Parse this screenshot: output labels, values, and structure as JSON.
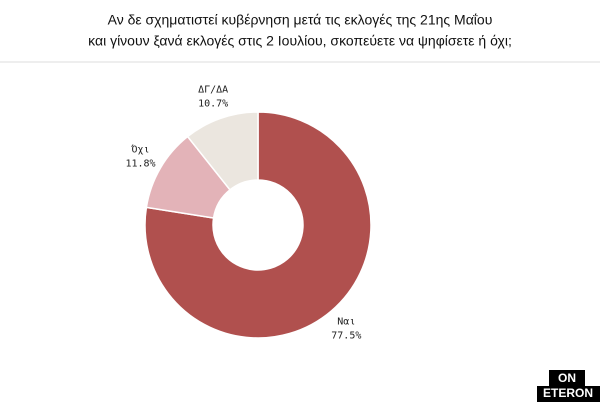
{
  "chart_data": {
    "type": "donut",
    "title": [
      "Αν δε σχηματιστεί κυβέρνηση μετά τις εκλογές της 21ης Μαΐου",
      "και γίνουν ξανά εκλογές στις 2 Ιουλίου, σκοπεύετε να ψηφίσετε ή όχι;"
    ],
    "categories": [
      "Ναι",
      "Όχι",
      "ΔΓ/ΔΑ"
    ],
    "values": [
      77.5,
      11.8,
      10.7
    ],
    "value_labels": [
      "77.5%",
      "11.8%",
      "10.7%"
    ],
    "colors": [
      "#b0504e",
      "#e3b3b8",
      "#ebe6df"
    ]
  },
  "logo": [
    "ON",
    "ETERON"
  ]
}
